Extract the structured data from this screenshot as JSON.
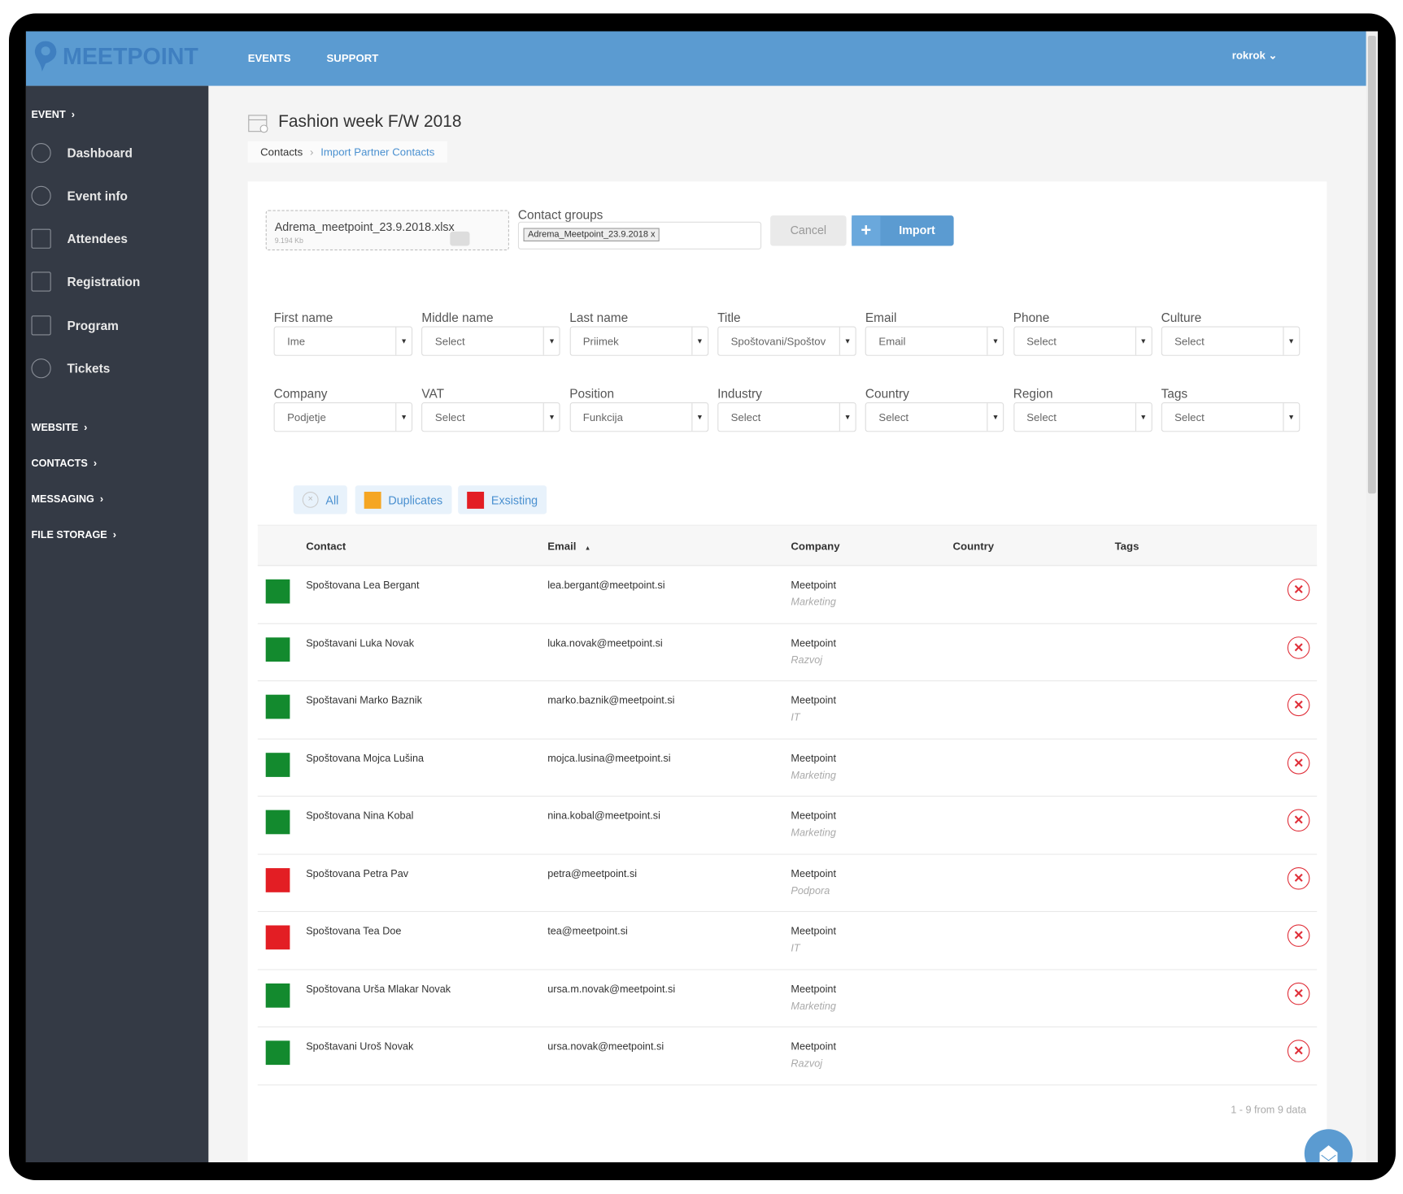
{
  "header": {
    "logo": "MEETPOINT",
    "nav": [
      "EVENTS",
      "SUPPORT"
    ],
    "user": "rokrok"
  },
  "sidebar": {
    "event_section": "EVENT",
    "items": [
      {
        "label": "Dashboard",
        "icon": "dashboard-icon"
      },
      {
        "label": "Event info",
        "icon": "info-icon"
      },
      {
        "label": "Attendees",
        "icon": "attendees-icon"
      },
      {
        "label": "Registration",
        "icon": "registration-icon"
      },
      {
        "label": "Program",
        "icon": "program-icon"
      },
      {
        "label": "Tickets",
        "icon": "ticket-icon"
      }
    ],
    "sections": [
      "WEBSITE",
      "CONTACTS",
      "MESSAGING",
      "FILE STORAGE"
    ]
  },
  "page": {
    "title": "Fashion week F/W 2018",
    "breadcrumb": [
      "Contacts",
      "Import Partner Contacts"
    ]
  },
  "upload": {
    "file_name": "Adrema_meetpoint_23.9.2018.xlsx",
    "file_size": "9.194 Kb",
    "contact_groups_label": "Contact groups",
    "group_tag": "Adrema_Meetpoint_23.9.2018 x",
    "cancel": "Cancel",
    "import": "Import"
  },
  "mapping": [
    {
      "label": "First name",
      "value": "Ime"
    },
    {
      "label": "Middle name",
      "value": "Select"
    },
    {
      "label": "Last name",
      "value": "Priimek"
    },
    {
      "label": "Title",
      "value": "Spoštovani/Spoštov"
    },
    {
      "label": "Email",
      "value": "Email"
    },
    {
      "label": "Phone",
      "value": "Select"
    },
    {
      "label": "Culture",
      "value": "Select"
    },
    {
      "label": "Company",
      "value": "Podjetje"
    },
    {
      "label": "VAT",
      "value": "Select"
    },
    {
      "label": "Position",
      "value": "Funkcija"
    },
    {
      "label": "Industry",
      "value": "Select"
    },
    {
      "label": "Country",
      "value": "Select"
    },
    {
      "label": "Region",
      "value": "Select"
    },
    {
      "label": "Tags",
      "value": "Select"
    }
  ],
  "filters": {
    "all": "All",
    "duplicates": "Duplicates",
    "existing": "Exsisting",
    "duplicates_color": "#f5a623",
    "existing_color": "#e31e24"
  },
  "table": {
    "columns": [
      "Contact",
      "Email",
      "Company",
      "Country",
      "Tags"
    ],
    "sort_indicator": "▲",
    "rows": [
      {
        "status": "new",
        "contact": "Spoštovana Lea Bergant",
        "email": "lea.bergant@meetpoint.si",
        "company": "Meetpoint",
        "position": "Marketing"
      },
      {
        "status": "new",
        "contact": "Spoštavani Luka Novak",
        "email": "luka.novak@meetpoint.si",
        "company": "Meetpoint",
        "position": "Razvoj"
      },
      {
        "status": "new",
        "contact": "Spoštavani Marko Baznik",
        "email": "marko.baznik@meetpoint.si",
        "company": "Meetpoint",
        "position": "IT"
      },
      {
        "status": "new",
        "contact": "Spoštovana Mojca Lušina",
        "email": "mojca.lusina@meetpoint.si",
        "company": "Meetpoint",
        "position": "Marketing"
      },
      {
        "status": "new",
        "contact": "Spoštovana Nina Kobal",
        "email": "nina.kobal@meetpoint.si",
        "company": "Meetpoint",
        "position": "Marketing"
      },
      {
        "status": "existing",
        "contact": "Spoštovana Petra Pav",
        "email": "petra@meetpoint.si",
        "company": "Meetpoint",
        "position": "Podpora"
      },
      {
        "status": "existing",
        "contact": "Spoštovana Tea Doe",
        "email": "tea@meetpoint.si",
        "company": "Meetpoint",
        "position": "IT"
      },
      {
        "status": "new",
        "contact": "Spoštovana Urša Mlakar Novak",
        "email": "ursa.m.novak@meetpoint.si",
        "company": "Meetpoint",
        "position": "Marketing"
      },
      {
        "status": "new",
        "contact": "Spoštavani Uroš Novak",
        "email": "ursa.novak@meetpoint.si",
        "company": "Meetpoint",
        "position": "Razvoj"
      }
    ],
    "pagination": "1 - 9 from 9 data"
  },
  "colors": {
    "header": "#5b9bd1",
    "sidebar": "#343a45",
    "new": "#138a2e",
    "existing": "#e31e24"
  }
}
